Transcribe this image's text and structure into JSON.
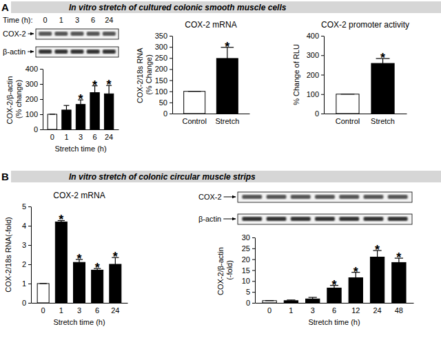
{
  "panels": [
    {
      "letter": "A",
      "title": "In vitro stretch of cultured colonic smooth muscle cells"
    },
    {
      "letter": "B",
      "title": "In vitro stretch of colonic circular muscle strips"
    }
  ],
  "blots": [
    {
      "rows": [
        "COX-2",
        "β-actin"
      ],
      "time_label": "Time (h):",
      "times": [
        "0",
        "1",
        "3",
        "6",
        "24"
      ]
    },
    {
      "rows": [
        "COX-2",
        "β-actin"
      ]
    }
  ],
  "chart_data": [
    {
      "type": "bar",
      "y_label": "COX-2/β-actin (% change)",
      "x_label": "Stretch time (h)",
      "categories": [
        "0",
        "1",
        "3",
        "6",
        "24"
      ],
      "values": [
        100,
        128,
        165,
        243,
        235
      ],
      "errors": [
        0,
        30,
        30,
        45,
        55
      ],
      "significance": [
        null,
        null,
        "*",
        "*",
        "*"
      ],
      "colors": [
        "#ffffff",
        "#000000",
        "#000000",
        "#000000",
        "#000000"
      ],
      "ylim": [
        0,
        400
      ],
      "yticks": [
        0,
        100,
        200,
        300,
        400
      ]
    },
    {
      "type": "bar",
      "title": "COX-2 mRNA",
      "y_label": "COX-2/18s RNA (% Change)",
      "categories": [
        "Control",
        "Stretch"
      ],
      "values": [
        100,
        248
      ],
      "errors": [
        0,
        50
      ],
      "significance": [
        null,
        "*"
      ],
      "colors": [
        "#ffffff",
        "#000000"
      ],
      "ylim": [
        0,
        350
      ],
      "yticks": [
        0,
        50,
        100,
        150,
        200,
        250,
        300,
        350
      ]
    },
    {
      "type": "bar",
      "title": "COX-2 promoter activity",
      "y_label": "% Change of RLU",
      "categories": [
        "Control",
        "Stretch"
      ],
      "values": [
        100,
        258
      ],
      "errors": [
        0,
        25
      ],
      "significance": [
        null,
        "*"
      ],
      "colors": [
        "#ffffff",
        "#000000"
      ],
      "ylim": [
        0,
        400
      ],
      "yticks": [
        0,
        100,
        200,
        300,
        400
      ]
    },
    {
      "type": "bar",
      "title": "COX-2 mRNA",
      "y_label": "COX-2/18s RNA(-fold)",
      "x_label": "Stretch time (h)",
      "categories": [
        "0",
        "1",
        "3",
        "6",
        "24"
      ],
      "values": [
        1,
        4.2,
        2.1,
        1.7,
        2.0
      ],
      "errors": [
        0,
        0.07,
        0.15,
        0.08,
        0.35
      ],
      "significance": [
        null,
        "*",
        "*",
        "*",
        "*"
      ],
      "colors": [
        "#ffffff",
        "#000000",
        "#000000",
        "#000000",
        "#000000"
      ],
      "ylim": [
        0,
        5
      ],
      "yticks": [
        0,
        1,
        2,
        3,
        4,
        5
      ]
    },
    {
      "type": "bar",
      "y_label": "COX-2/β-actin (-fold)",
      "x_label": "Stretch time (h)",
      "categories": [
        "0",
        "1",
        "3",
        "6",
        "12",
        "24",
        "48"
      ],
      "values": [
        1,
        1,
        1.8,
        6.8,
        11.5,
        21,
        18.5
      ],
      "errors": [
        0,
        0.3,
        0.7,
        1.2,
        2.5,
        3,
        2
      ],
      "significance": [
        null,
        null,
        null,
        "*",
        "*",
        "*",
        "*"
      ],
      "colors": [
        "#ffffff",
        "#000000",
        "#000000",
        "#000000",
        "#000000",
        "#000000",
        "#000000"
      ],
      "ylim": [
        0,
        30
      ],
      "yticks": [
        0,
        5,
        10,
        15,
        20,
        25,
        30
      ]
    }
  ]
}
